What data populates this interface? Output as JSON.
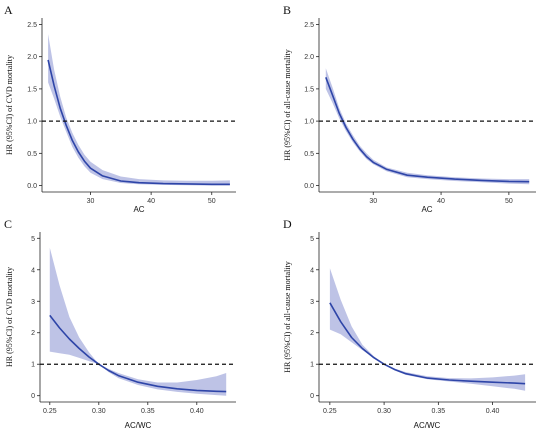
{
  "chart_data": [
    {
      "panel": "A",
      "type": "area",
      "xlabel": "AC",
      "ylabel": "HR (95%CI) of CVD mortality",
      "xlim": [
        22,
        54
      ],
      "ylim": [
        -0.1,
        2.6
      ],
      "xticks": [
        30,
        40,
        50
      ],
      "yticks": [
        0.0,
        0.5,
        1.0,
        1.5,
        2.0,
        2.5
      ],
      "ytick_decimals": 1,
      "reference_line": 1.0,
      "series": [
        {
          "x": [
            23,
            24,
            25,
            26,
            27,
            28,
            29,
            30,
            32,
            35,
            38,
            42,
            46,
            50,
            53
          ],
          "y": [
            1.95,
            1.55,
            1.2,
            0.93,
            0.7,
            0.52,
            0.38,
            0.27,
            0.15,
            0.07,
            0.045,
            0.03,
            0.025,
            0.02,
            0.02
          ],
          "lower": [
            1.6,
            1.35,
            1.07,
            0.83,
            0.6,
            0.43,
            0.3,
            0.2,
            0.1,
            0.04,
            0.02,
            0.01,
            0.005,
            0.0,
            0.0
          ],
          "upper": [
            2.35,
            1.8,
            1.38,
            1.05,
            0.82,
            0.63,
            0.48,
            0.37,
            0.24,
            0.14,
            0.1,
            0.08,
            0.075,
            0.075,
            0.08
          ]
        }
      ],
      "colors": {
        "line": "#2e45a8",
        "band": "#b3b8e2"
      }
    },
    {
      "panel": "B",
      "type": "area",
      "xlabel": "AC",
      "ylabel": "HR (95%CI) of all-cause mortality",
      "xlim": [
        22,
        54
      ],
      "ylim": [
        -0.1,
        2.6
      ],
      "xticks": [
        30,
        40,
        50
      ],
      "yticks": [
        0.0,
        0.5,
        1.0,
        1.5,
        2.0,
        2.5
      ],
      "ytick_decimals": 1,
      "reference_line": 1.0,
      "series": [
        {
          "x": [
            23,
            24,
            25,
            26,
            27,
            28,
            29,
            30,
            32,
            35,
            38,
            42,
            46,
            50,
            53
          ],
          "y": [
            1.68,
            1.4,
            1.12,
            0.9,
            0.72,
            0.57,
            0.45,
            0.36,
            0.25,
            0.16,
            0.13,
            0.1,
            0.08,
            0.065,
            0.06
          ],
          "lower": [
            1.5,
            1.28,
            1.04,
            0.84,
            0.67,
            0.53,
            0.41,
            0.33,
            0.22,
            0.13,
            0.1,
            0.07,
            0.05,
            0.03,
            0.02
          ],
          "upper": [
            1.82,
            1.52,
            1.2,
            0.96,
            0.78,
            0.62,
            0.5,
            0.4,
            0.28,
            0.2,
            0.16,
            0.13,
            0.11,
            0.1,
            0.1
          ]
        }
      ],
      "colors": {
        "line": "#2e45a8",
        "band": "#b3b8e2"
      }
    },
    {
      "panel": "C",
      "type": "area",
      "xlabel": "AC/WC",
      "ylabel": "HR (95%CI) of CVD mortality",
      "xlim": [
        0.24,
        0.44
      ],
      "ylim": [
        -0.2,
        5.2
      ],
      "xticks": [
        0.25,
        0.3,
        0.35,
        0.4
      ],
      "yticks": [
        0,
        1,
        2,
        3,
        4,
        5
      ],
      "ytick_decimals": 0,
      "reference_line": 1.0,
      "series": [
        {
          "x": [
            0.25,
            0.26,
            0.27,
            0.28,
            0.29,
            0.3,
            0.31,
            0.32,
            0.34,
            0.36,
            0.38,
            0.4,
            0.42,
            0.43
          ],
          "y": [
            2.55,
            2.15,
            1.8,
            1.5,
            1.23,
            1.0,
            0.8,
            0.64,
            0.43,
            0.3,
            0.22,
            0.17,
            0.14,
            0.13
          ],
          "lower": [
            1.4,
            1.35,
            1.3,
            1.2,
            1.1,
            1.0,
            0.75,
            0.56,
            0.34,
            0.2,
            0.12,
            0.06,
            0.02,
            0.0
          ],
          "upper": [
            4.7,
            3.5,
            2.5,
            1.85,
            1.38,
            1.0,
            0.85,
            0.72,
            0.52,
            0.42,
            0.42,
            0.5,
            0.62,
            0.72
          ]
        }
      ],
      "colors": {
        "line": "#2e45a8",
        "band": "#b3b8e2"
      }
    },
    {
      "panel": "D",
      "type": "area",
      "xlabel": "AC/WC",
      "ylabel": "HR (95%CI) of all-cause mortality",
      "xlim": [
        0.24,
        0.44
      ],
      "ylim": [
        -0.2,
        5.2
      ],
      "xticks": [
        0.25,
        0.3,
        0.35,
        0.4
      ],
      "yticks": [
        0,
        1,
        2,
        3,
        4,
        5
      ],
      "ytick_decimals": 0,
      "reference_line": 1.0,
      "series": [
        {
          "x": [
            0.25,
            0.26,
            0.27,
            0.28,
            0.29,
            0.3,
            0.31,
            0.32,
            0.34,
            0.36,
            0.38,
            0.4,
            0.42,
            0.43
          ],
          "y": [
            2.95,
            2.35,
            1.85,
            1.5,
            1.22,
            1.0,
            0.83,
            0.7,
            0.56,
            0.5,
            0.46,
            0.43,
            0.4,
            0.38
          ],
          "lower": [
            2.1,
            1.95,
            1.7,
            1.45,
            1.2,
            1.0,
            0.8,
            0.66,
            0.52,
            0.45,
            0.38,
            0.3,
            0.22,
            0.16
          ],
          "upper": [
            4.05,
            3.05,
            2.2,
            1.62,
            1.27,
            1.0,
            0.86,
            0.75,
            0.62,
            0.56,
            0.55,
            0.58,
            0.64,
            0.68
          ]
        }
      ],
      "colors": {
        "line": "#2e45a8",
        "band": "#b3b8e2"
      }
    }
  ]
}
